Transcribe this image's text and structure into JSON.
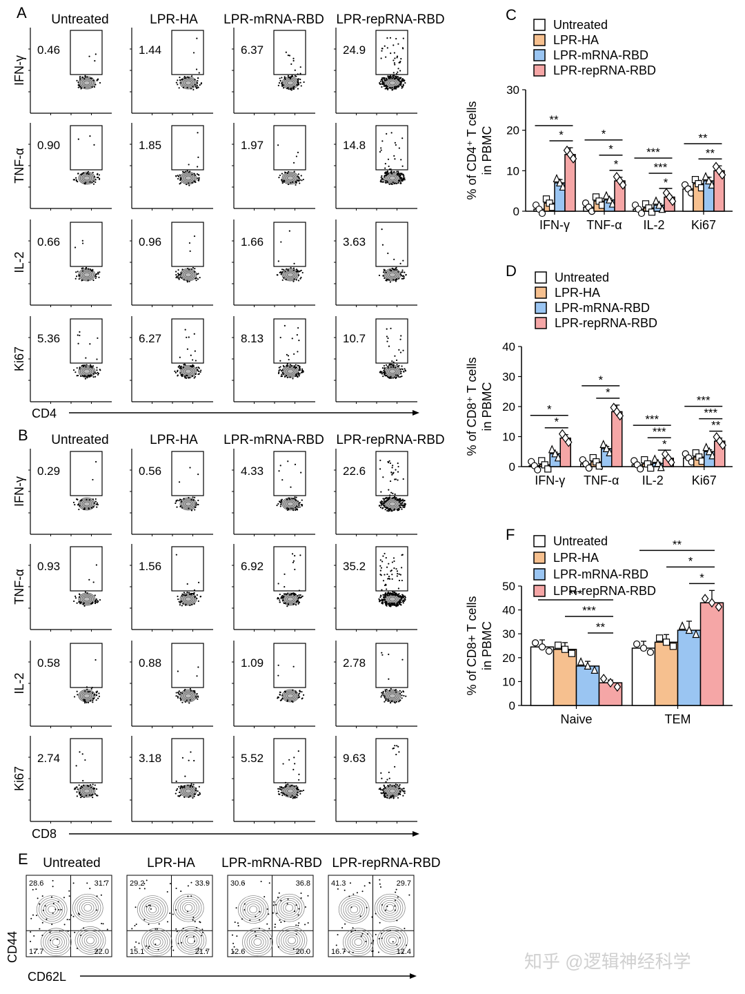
{
  "colors": {
    "untreated": "#ffffff",
    "lpr_ha": "#f6c08f",
    "lpr_mrna": "#9ac5f2",
    "lpr_reprna": "#f5a6a6"
  },
  "groups": [
    "Untreated",
    "LPR-HA",
    "LPR-mRNA-RBD",
    "LPR-repRNA-RBD"
  ],
  "panel_a": {
    "letter": "A",
    "x_axis": "CD4",
    "rows": [
      {
        "marker": "IFN-γ",
        "values": [
          "0.46",
          "1.44",
          "6.37",
          "24.9"
        ]
      },
      {
        "marker": "TNF-α",
        "values": [
          "0.90",
          "1.85",
          "1.97",
          "14.8"
        ]
      },
      {
        "marker": "IL-2",
        "values": [
          "0.66",
          "0.96",
          "1.66",
          "3.63"
        ]
      },
      {
        "marker": "Ki67",
        "values": [
          "5.36",
          "6.27",
          "8.13",
          "10.7"
        ]
      }
    ]
  },
  "panel_b": {
    "letter": "B",
    "x_axis": "CD8",
    "rows": [
      {
        "marker": "IFN-γ",
        "values": [
          "0.29",
          "0.56",
          "4.33",
          "22.6"
        ]
      },
      {
        "marker": "TNF-α",
        "values": [
          "0.93",
          "1.56",
          "6.92",
          "35.2"
        ]
      },
      {
        "marker": "IL-2",
        "values": [
          "0.58",
          "0.88",
          "1.09",
          "2.78"
        ]
      },
      {
        "marker": "Ki67",
        "values": [
          "2.74",
          "3.18",
          "5.52",
          "9.63"
        ]
      }
    ]
  },
  "panel_e": {
    "letter": "E",
    "x_axis": "CD62L",
    "y_axis": "CD44",
    "plots": [
      {
        "tl": "28.6",
        "tr": "31.7",
        "bl": "17.7",
        "br": "22.0"
      },
      {
        "tl": "29.2",
        "tr": "33.9",
        "bl": "15.1",
        "br": "21.7"
      },
      {
        "tl": "30.6",
        "tr": "36.8",
        "bl": "12.6",
        "br": "20.0"
      },
      {
        "tl": "41.3",
        "tr": "29.7",
        "bl": "16.7",
        "br": "12.4"
      }
    ]
  },
  "watermark": "知乎 @逻辑神经科学",
  "chart_data": [
    {
      "panel": "C",
      "type": "bar",
      "categories": [
        "IFN-γ",
        "TNF-α",
        "IL-2",
        "Ki67"
      ],
      "ylabel": "% of CD4⁺ T cells in PBMC",
      "ylim": [
        0,
        30
      ],
      "yticks": [
        0,
        10,
        20,
        30
      ],
      "legend": [
        "Untreated",
        "LPR-HA",
        "LPR-mRNA-RBD",
        "LPR-repRNA-RBD"
      ],
      "series": [
        {
          "name": "Untreated",
          "values": [
            0.5,
            1.0,
            0.5,
            5.5
          ]
        },
        {
          "name": "LPR-HA",
          "values": [
            2.0,
            2.5,
            0.8,
            6.8
          ]
        },
        {
          "name": "LPR-mRNA-RBD",
          "values": [
            7.0,
            2.8,
            1.5,
            7.5
          ]
        },
        {
          "name": "LPR-repRNA-RBD",
          "values": [
            14.0,
            7.5,
            3.5,
            10.0
          ]
        }
      ],
      "significance": [
        {
          "group": 0,
          "from": 0,
          "to": 3,
          "label": "**"
        },
        {
          "group": 0,
          "from": 1,
          "to": 3,
          "label": "*"
        },
        {
          "group": 1,
          "from": 0,
          "to": 3,
          "label": "*"
        },
        {
          "group": 1,
          "from": 1,
          "to": 3,
          "label": "*"
        },
        {
          "group": 1,
          "from": 2,
          "to": 3,
          "label": "*"
        },
        {
          "group": 2,
          "from": 0,
          "to": 3,
          "label": "***"
        },
        {
          "group": 2,
          "from": 1,
          "to": 3,
          "label": "***"
        },
        {
          "group": 2,
          "from": 2,
          "to": 3,
          "label": "*"
        },
        {
          "group": 3,
          "from": 0,
          "to": 3,
          "label": "**"
        },
        {
          "group": 3,
          "from": 1,
          "to": 3,
          "label": "**"
        }
      ]
    },
    {
      "panel": "D",
      "type": "bar",
      "categories": [
        "IFN-γ",
        "TNF-α",
        "IL-2",
        "Ki67"
      ],
      "ylabel": "% of CD8⁺ T cells in PBMC",
      "ylim": [
        0,
        40
      ],
      "yticks": [
        0,
        10,
        20,
        30,
        40
      ],
      "legend": [
        "Untreated",
        "LPR-HA",
        "LPR-mRNA-RBD",
        "LPR-repRNA-RBD"
      ],
      "series": [
        {
          "name": "Untreated",
          "values": [
            0.3,
            0.9,
            0.6,
            2.9
          ]
        },
        {
          "name": "LPR-HA",
          "values": [
            0.6,
            1.6,
            0.9,
            3.2
          ]
        },
        {
          "name": "LPR-mRNA-RBD",
          "values": [
            4.3,
            6.0,
            1.1,
            5.0
          ]
        },
        {
          "name": "LPR-repRNA-RBD",
          "values": [
            9.5,
            18.3,
            2.8,
            8.5
          ]
        }
      ],
      "significance": [
        {
          "group": 0,
          "from": 0,
          "to": 3,
          "label": "*"
        },
        {
          "group": 0,
          "from": 1,
          "to": 3,
          "label": "*"
        },
        {
          "group": 1,
          "from": 0,
          "to": 3,
          "label": "*"
        },
        {
          "group": 1,
          "from": 1,
          "to": 3,
          "label": "*"
        },
        {
          "group": 2,
          "from": 0,
          "to": 3,
          "label": "***"
        },
        {
          "group": 2,
          "from": 1,
          "to": 3,
          "label": "***"
        },
        {
          "group": 2,
          "from": 2,
          "to": 3,
          "label": "*"
        },
        {
          "group": 3,
          "from": 0,
          "to": 3,
          "label": "***"
        },
        {
          "group": 3,
          "from": 1,
          "to": 3,
          "label": "***"
        },
        {
          "group": 3,
          "from": 2,
          "to": 3,
          "label": "**"
        }
      ]
    },
    {
      "panel": "F",
      "type": "bar",
      "categories": [
        "Naive",
        "TEM"
      ],
      "ylabel": "% of CD8+ T cells in PBMC",
      "ylim": [
        0,
        50
      ],
      "yticks": [
        0,
        10,
        20,
        30,
        40,
        50
      ],
      "legend": [
        "Untreated",
        "LPR-HA",
        "LPR-mRNA-RBD",
        "LPR-repRNA-RBD"
      ],
      "series": [
        {
          "name": "Untreated",
          "values": [
            24.5,
            24.0
          ]
        },
        {
          "name": "LPR-HA",
          "values": [
            23.5,
            26.5
          ]
        },
        {
          "name": "LPR-mRNA-RBD",
          "values": [
            16.5,
            31.5
          ]
        },
        {
          "name": "LPR-repRNA-RBD",
          "values": [
            9.5,
            43.0
          ]
        }
      ],
      "significance": [
        {
          "group": 0,
          "from": 0,
          "to": 3,
          "label": "***"
        },
        {
          "group": 0,
          "from": 1,
          "to": 3,
          "label": "***"
        },
        {
          "group": 0,
          "from": 2,
          "to": 3,
          "label": "**"
        },
        {
          "group": 1,
          "from": 0,
          "to": 3,
          "label": "**"
        },
        {
          "group": 1,
          "from": 1,
          "to": 3,
          "label": "*"
        },
        {
          "group": 1,
          "from": 2,
          "to": 3,
          "label": "*"
        }
      ]
    }
  ]
}
